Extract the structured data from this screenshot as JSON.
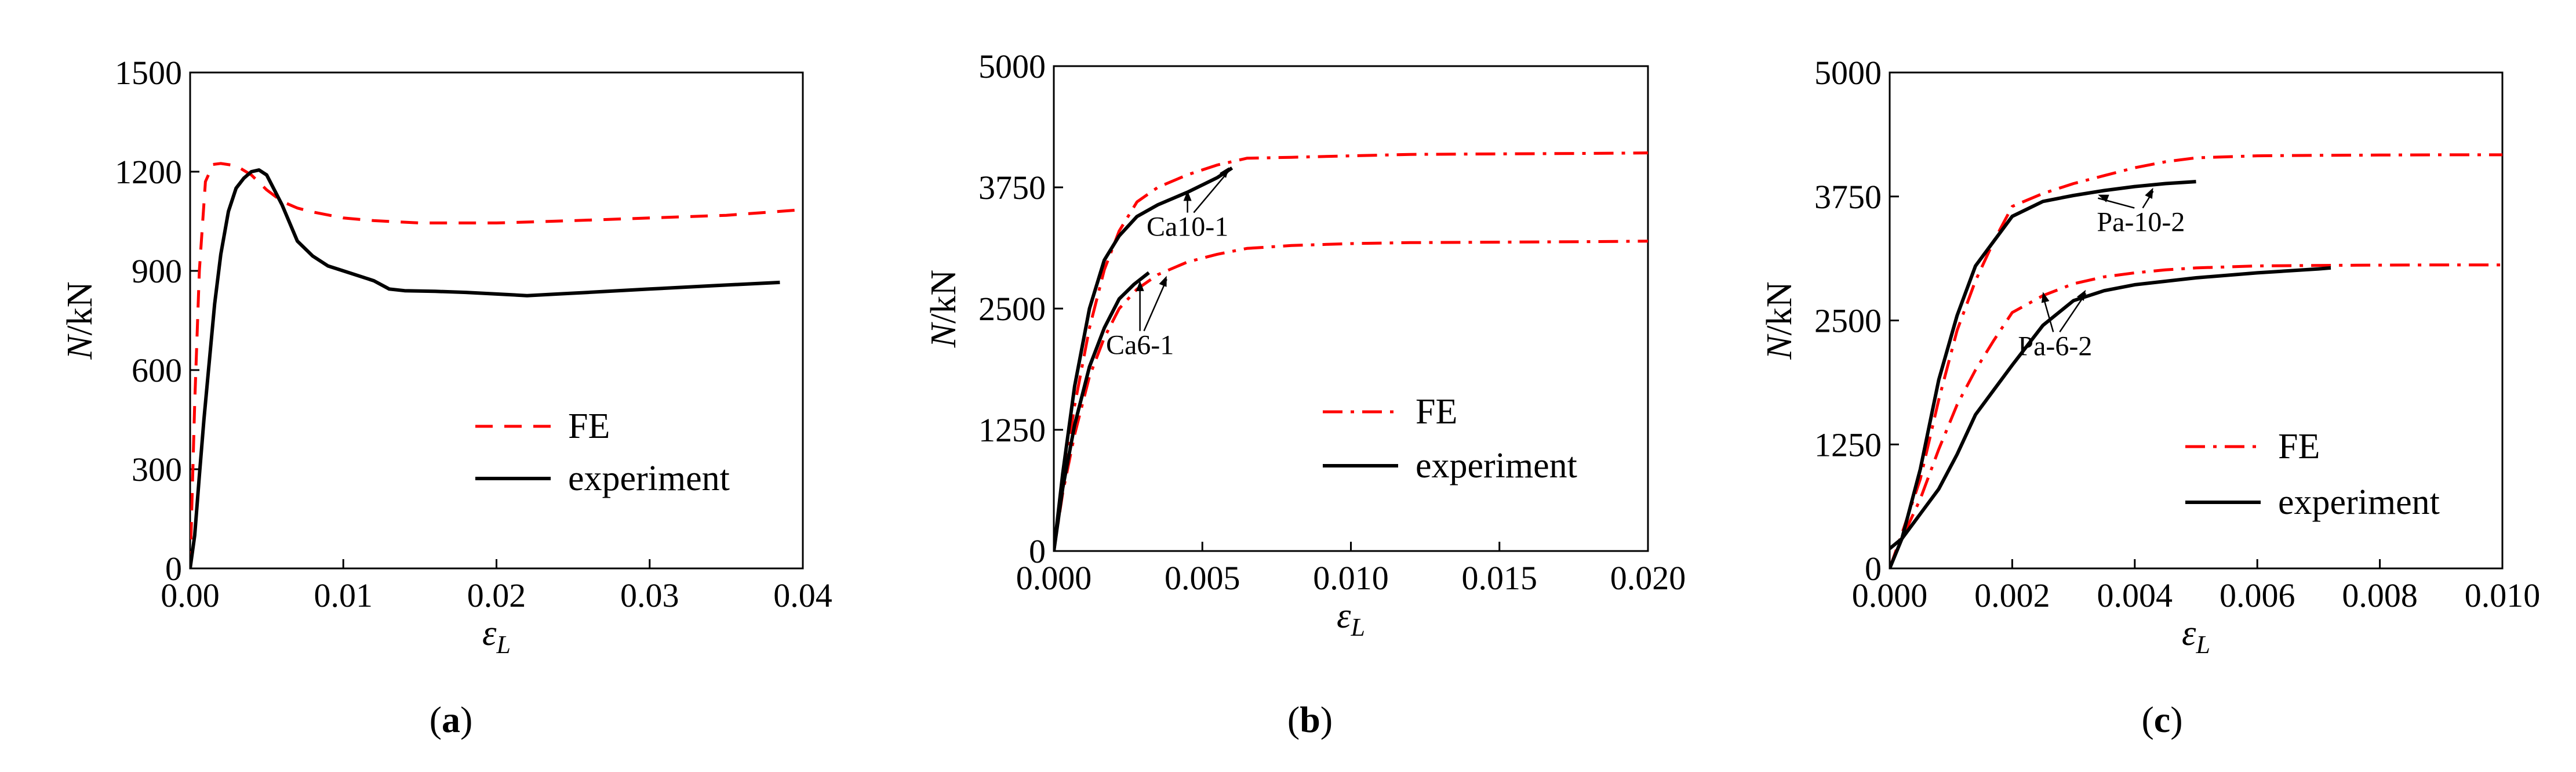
{
  "chart_data": [
    {
      "type": "line",
      "caption_open": "(",
      "caption_letter": "a",
      "caption_close": ")",
      "title": "",
      "xlabel": "ε_L",
      "xlabel_symbol": "ε",
      "xlabel_sub": "L",
      "ylabel_var": "N",
      "ylabel_unit": "/kN",
      "xlim": [
        0,
        0.04
      ],
      "ylim": [
        0,
        1500
      ],
      "xticks": [
        "0.00",
        "0.01",
        "0.02",
        "0.03",
        "0.04"
      ],
      "xtick_values": [
        0,
        0.01,
        0.02,
        0.03,
        0.04
      ],
      "yticks": [
        "0",
        "300",
        "600",
        "900",
        "1200",
        "1500"
      ],
      "ytick_values": [
        0,
        300,
        600,
        900,
        1200,
        1500
      ],
      "legend": [
        "FE",
        "experiment"
      ],
      "legend_position": "center-right",
      "series": [
        {
          "name": "FE",
          "style": "dashed",
          "color": "#ff0000",
          "x": [
            0,
            0.0003,
            0.0006,
            0.001,
            0.0015,
            0.002,
            0.003,
            0.004,
            0.005,
            0.006,
            0.007,
            0.008,
            0.01,
            0.012,
            0.015,
            0.02,
            0.025,
            0.03,
            0.035,
            0.04
          ],
          "y": [
            0,
            500,
            900,
            1170,
            1222,
            1225,
            1218,
            1190,
            1145,
            1110,
            1090,
            1078,
            1060,
            1052,
            1045,
            1045,
            1052,
            1060,
            1068,
            1085
          ]
        },
        {
          "name": "experiment",
          "style": "solid",
          "color": "#000000",
          "x": [
            0,
            0.0003,
            0.0006,
            0.0009,
            0.0012,
            0.0016,
            0.002,
            0.0025,
            0.003,
            0.0035,
            0.004,
            0.0045,
            0.005,
            0.006,
            0.007,
            0.008,
            0.009,
            0.01,
            0.012,
            0.013,
            0.014,
            0.016,
            0.018,
            0.02,
            0.022,
            0.024,
            0.026,
            0.03,
            0.034,
            0.0385
          ],
          "y": [
            0,
            100,
            280,
            450,
            600,
            800,
            950,
            1080,
            1150,
            1180,
            1200,
            1205,
            1190,
            1100,
            990,
            945,
            915,
            900,
            870,
            845,
            840,
            838,
            835,
            830,
            825,
            830,
            835,
            845,
            855,
            865
          ]
        }
      ]
    },
    {
      "type": "line",
      "caption_open": "(",
      "caption_letter": "b",
      "caption_close": ")",
      "title": "",
      "xlabel": "ε_L",
      "xlabel_symbol": "ε",
      "xlabel_sub": "L",
      "ylabel_var": "N",
      "ylabel_unit": "/kN",
      "xlim": [
        0,
        0.02
      ],
      "ylim": [
        0,
        5000
      ],
      "xticks": [
        "0.000",
        "0.005",
        "0.010",
        "0.015",
        "0.020"
      ],
      "xtick_values": [
        0,
        0.005,
        0.01,
        0.015,
        0.02
      ],
      "yticks": [
        "0",
        "1250",
        "2500",
        "3750",
        "5000"
      ],
      "ytick_values": [
        0,
        1250,
        2500,
        3750,
        5000
      ],
      "legend": [
        "FE",
        "experiment"
      ],
      "legend_position": "center-right",
      "annotations": [
        {
          "text": "Ca10-1",
          "x": 0.0045,
          "y": 3250,
          "arrows": [
            [
              0.0045,
              3730
            ],
            [
              0.0059,
              3970
            ]
          ]
        },
        {
          "text": "Ca6-1",
          "x": 0.0029,
          "y": 2030,
          "arrows": [
            [
              0.0029,
              2800
            ],
            [
              0.0038,
              2850
            ]
          ]
        }
      ],
      "series": [
        {
          "name": "FE Ca10-1",
          "style": "dashdot",
          "color": "#ff0000",
          "x": [
            0,
            0.0003,
            0.0007,
            0.0012,
            0.0017,
            0.0022,
            0.0028,
            0.0035,
            0.0045,
            0.0055,
            0.0065,
            0.008,
            0.01,
            0.012,
            0.015,
            0.018,
            0.02
          ],
          "y": [
            0,
            700,
            1500,
            2300,
            2900,
            3300,
            3600,
            3750,
            3880,
            3980,
            4050,
            4060,
            4075,
            4090,
            4095,
            4100,
            4105
          ]
        },
        {
          "name": "FE Ca6-1",
          "style": "dashdot",
          "color": "#ff0000",
          "x": [
            0,
            0.0003,
            0.0007,
            0.0012,
            0.0017,
            0.0022,
            0.0028,
            0.0035,
            0.0045,
            0.0055,
            0.0065,
            0.008,
            0.01,
            0.012,
            0.015,
            0.018,
            0.02
          ],
          "y": [
            0,
            600,
            1200,
            1800,
            2200,
            2500,
            2700,
            2850,
            2980,
            3060,
            3120,
            3150,
            3170,
            3180,
            3185,
            3190,
            3195
          ]
        },
        {
          "name": "experiment Ca10-1",
          "style": "solid",
          "color": "#000000",
          "x": [
            0,
            0.0003,
            0.0007,
            0.0012,
            0.0017,
            0.0022,
            0.0028,
            0.0035,
            0.0045,
            0.0055,
            0.006
          ],
          "y": [
            0,
            800,
            1700,
            2500,
            3000,
            3250,
            3450,
            3570,
            3700,
            3850,
            3950
          ]
        },
        {
          "name": "experiment Ca6-1",
          "style": "solid",
          "color": "#000000",
          "x": [
            0,
            0.0003,
            0.0007,
            0.0012,
            0.0017,
            0.0022,
            0.0027,
            0.0032
          ],
          "y": [
            0,
            650,
            1300,
            1900,
            2300,
            2600,
            2750,
            2870
          ]
        }
      ]
    },
    {
      "type": "line",
      "caption_open": "(",
      "caption_letter": "c",
      "caption_close": ")",
      "title": "",
      "xlabel": "ε_L",
      "xlabel_symbol": "ε",
      "xlabel_sub": "L",
      "ylabel_var": "N",
      "ylabel_unit": "/kN",
      "xlim": [
        0,
        0.01
      ],
      "ylim": [
        0,
        5000
      ],
      "xticks": [
        "0.000",
        "0.002",
        "0.004",
        "0.006",
        "0.008",
        "0.010"
      ],
      "xtick_values": [
        0,
        0.002,
        0.004,
        0.006,
        0.008,
        0.01
      ],
      "yticks": [
        "0",
        "1250",
        "2500",
        "3750",
        "5000"
      ],
      "ytick_values": [
        0,
        1250,
        2500,
        3750,
        5000
      ],
      "legend": [
        "FE",
        "experiment"
      ],
      "legend_position": "bottom-right",
      "annotations": [
        {
          "text": "Pa-10-2",
          "x": 0.0041,
          "y": 3400,
          "arrows": [
            [
              0.0034,
              3780
            ],
            [
              0.0043,
              3850
            ]
          ]
        },
        {
          "text": "Pa-6-2",
          "x": 0.0027,
          "y": 2150,
          "arrows": [
            [
              0.0025,
              2800
            ],
            [
              0.0032,
              2820
            ]
          ]
        }
      ],
      "series": [
        {
          "name": "FE Pa-10-2",
          "style": "dashdot",
          "color": "#ff0000",
          "x": [
            0,
            0.0002,
            0.0005,
            0.0008,
            0.0011,
            0.0014,
            0.0017,
            0.002,
            0.0025,
            0.003,
            0.0035,
            0.004,
            0.0045,
            0.005,
            0.006,
            0.007,
            0.008,
            0.009,
            0.01
          ],
          "y": [
            0,
            350,
            900,
            1700,
            2400,
            2900,
            3300,
            3650,
            3780,
            3880,
            3960,
            4040,
            4100,
            4140,
            4160,
            4165,
            4168,
            4170,
            4170
          ]
        },
        {
          "name": "FE Pa-6-2",
          "style": "dashdot",
          "color": "#ff0000",
          "x": [
            0,
            0.0002,
            0.0005,
            0.0008,
            0.0011,
            0.0014,
            0.0017,
            0.002,
            0.0025,
            0.003,
            0.0035,
            0.004,
            0.0045,
            0.005,
            0.006,
            0.007,
            0.008,
            0.009,
            0.01
          ],
          "y": [
            0,
            300,
            700,
            1200,
            1650,
            2000,
            2300,
            2580,
            2750,
            2870,
            2940,
            2980,
            3010,
            3030,
            3050,
            3055,
            3058,
            3060,
            3060
          ]
        },
        {
          "name": "experiment Pa-10-2",
          "style": "solid",
          "color": "#000000",
          "x": [
            0,
            0.0002,
            0.0005,
            0.0008,
            0.0011,
            0.0014,
            0.0017,
            0.002,
            0.0025,
            0.003,
            0.0035,
            0.004,
            0.0045,
            0.005
          ],
          "y": [
            0,
            300,
            1000,
            1900,
            2550,
            3050,
            3300,
            3550,
            3700,
            3760,
            3810,
            3850,
            3880,
            3900
          ]
        },
        {
          "name": "experiment Pa-6-2",
          "style": "solid",
          "color": "#000000",
          "x": [
            0,
            0.0002,
            0.0005,
            0.0008,
            0.0011,
            0.0014,
            0.0017,
            0.002,
            0.0025,
            0.003,
            0.0035,
            0.004,
            0.005,
            0.006,
            0.007,
            0.0072
          ],
          "y": [
            200,
            300,
            550,
            800,
            1150,
            1550,
            1800,
            2050,
            2450,
            2700,
            2800,
            2860,
            2930,
            2980,
            3020,
            3030
          ]
        }
      ]
    }
  ]
}
